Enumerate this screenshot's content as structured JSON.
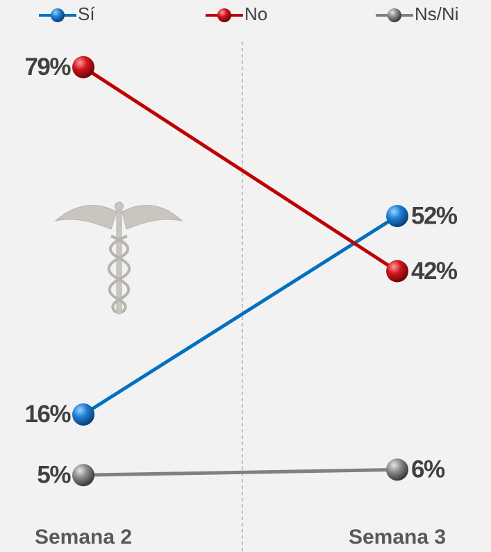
{
  "chart_data": {
    "type": "line",
    "categories": [
      "Semana 2",
      "Semana 3"
    ],
    "series": [
      {
        "name": "Sí",
        "color": "#0070c0",
        "values": [
          16,
          52
        ],
        "value_labels": [
          "16%",
          "52%"
        ]
      },
      {
        "name": "No",
        "color": "#c00000",
        "values": [
          79,
          42
        ],
        "value_labels": [
          "79%",
          "42%"
        ]
      },
      {
        "name": "Ns/Ni",
        "color": "#808080",
        "values": [
          5,
          6
        ],
        "value_labels": [
          "5%",
          "6%"
        ]
      }
    ]
  }
}
